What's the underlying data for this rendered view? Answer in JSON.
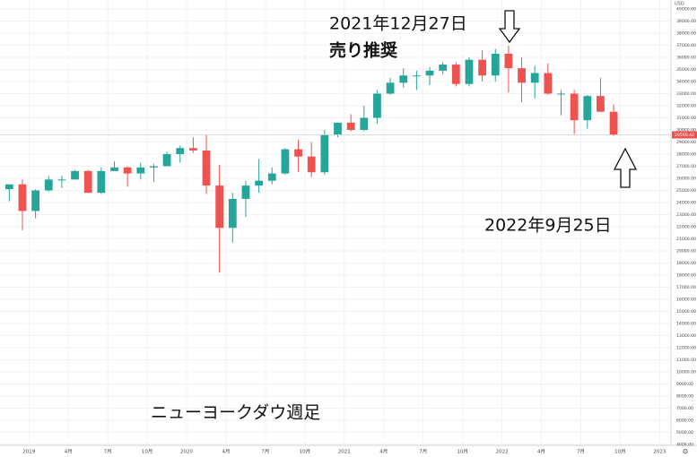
{
  "chart_data": {
    "type": "candlestick",
    "title": "ニューヨークダウ週足",
    "annotations": [
      "2021年12月27日",
      "売り推奨",
      "2022年9月25日"
    ],
    "currency": "USD",
    "up_color": "#26a69a",
    "down_color": "#ef5350",
    "last_price": 29590.42,
    "x": [
      "2018-11",
      "2018-12",
      "2019-01",
      "2019-02",
      "2019-03",
      "2019-04",
      "2019-05",
      "2019-06",
      "2019-07",
      "2019-08",
      "2019-09",
      "2019-10",
      "2019-11",
      "2019-12",
      "2020-01",
      "2020-02",
      "2020-03",
      "2020-04",
      "2020-05",
      "2020-06",
      "2020-07",
      "2020-08",
      "2020-09",
      "2020-10",
      "2020-11",
      "2020-12",
      "2021-01",
      "2021-02",
      "2021-03",
      "2021-04",
      "2021-05",
      "2021-06",
      "2021-07",
      "2021-08",
      "2021-09",
      "2021-10",
      "2021-11",
      "2021-12",
      "2022-01",
      "2022-02",
      "2022-03",
      "2022-04",
      "2022-05",
      "2022-06",
      "2022-07",
      "2022-08",
      "2022-09"
    ],
    "open": [
      25100,
      25500,
      23300,
      25000,
      25900,
      25900,
      26600,
      24800,
      26600,
      26900,
      26400,
      26900,
      27000,
      28000,
      28500,
      28300,
      25400,
      21900,
      24300,
      25400,
      25800,
      26400,
      28400,
      27800,
      26500,
      29600,
      30600,
      30000,
      31000,
      33000,
      33900,
      34500,
      34500,
      34900,
      35400,
      33800,
      35800,
      34500,
      36300,
      35100,
      33900,
      34700,
      33000,
      33000,
      30800,
      32800,
      31500
    ],
    "high": [
      25500,
      25900,
      25100,
      26200,
      26200,
      26700,
      26700,
      26900,
      27400,
      27000,
      27300,
      27200,
      28200,
      28700,
      29400,
      29600,
      27100,
      24800,
      25800,
      27600,
      26900,
      28500,
      29200,
      29000,
      30000,
      30600,
      31300,
      32000,
      33300,
      34300,
      35100,
      34900,
      35200,
      35600,
      35600,
      36000,
      36600,
      36700,
      36950,
      36000,
      35300,
      35500,
      33300,
      33300,
      32900,
      34300,
      32100
    ],
    "low": [
      24100,
      21700,
      22700,
      24900,
      25200,
      25900,
      24800,
      24700,
      26600,
      25300,
      25900,
      25700,
      27000,
      27300,
      28100,
      24700,
      18200,
      20700,
      22800,
      24800,
      25500,
      26300,
      26500,
      26100,
      26300,
      29400,
      29900,
      29900,
      30500,
      32900,
      33500,
      33300,
      33700,
      34600,
      33600,
      33600,
      34000,
      34000,
      33100,
      32300,
      32600,
      32900,
      31200,
      29650,
      30100,
      31500,
      29500
    ],
    "close": [
      25500,
      23300,
      25000,
      25900,
      25900,
      26600,
      24800,
      26600,
      26900,
      26400,
      26900,
      27000,
      28000,
      28500,
      28300,
      25400,
      21900,
      24300,
      25400,
      25800,
      26400,
      28400,
      27800,
      26500,
      29600,
      30600,
      30000,
      31000,
      33000,
      33900,
      34500,
      34500,
      34900,
      35400,
      33800,
      35800,
      34500,
      36300,
      35100,
      33900,
      34700,
      33000,
      33000,
      30800,
      32800,
      31500,
      29590
    ],
    "xlim": [
      "2018-11",
      "2023-02"
    ],
    "xticks": [
      {
        "value": "2019-01",
        "label": "2019"
      },
      {
        "value": "2019-04",
        "label": "4月"
      },
      {
        "value": "2019-07",
        "label": "7月"
      },
      {
        "value": "2019-10",
        "label": "10月"
      },
      {
        "value": "2020-01",
        "label": "2020"
      },
      {
        "value": "2020-04",
        "label": "4月"
      },
      {
        "value": "2020-07",
        "label": "7月"
      },
      {
        "value": "2020-10",
        "label": "10月"
      },
      {
        "value": "2021-01",
        "label": "2021"
      },
      {
        "value": "2021-04",
        "label": "4月"
      },
      {
        "value": "2021-07",
        "label": "7月"
      },
      {
        "value": "2021-10",
        "label": "10月"
      },
      {
        "value": "2022-01",
        "label": "2022"
      },
      {
        "value": "2022-04",
        "label": "4月"
      },
      {
        "value": "2022-07",
        "label": "7月"
      },
      {
        "value": "2022-10",
        "label": "10月"
      },
      {
        "value": "2023-01",
        "label": "2023"
      }
    ],
    "ylim": [
      3925,
      40740
    ],
    "yticks": [
      {
        "value": 4000,
        "label": "4000.00"
      },
      {
        "value": 5000,
        "label": "5000.00"
      },
      {
        "value": 6000,
        "label": "6000.00"
      },
      {
        "value": 7000,
        "label": "7000.00"
      },
      {
        "value": 8000,
        "label": "8000.00"
      },
      {
        "value": 9000,
        "label": "9000.00"
      },
      {
        "value": 10000,
        "label": "10000.00"
      },
      {
        "value": 11000,
        "label": "11000.00"
      },
      {
        "value": 12000,
        "label": "12000.00"
      },
      {
        "value": 13000,
        "label": "13000.00"
      },
      {
        "value": 14000,
        "label": "14000.00"
      },
      {
        "value": 15000,
        "label": "15000.00"
      },
      {
        "value": 16000,
        "label": "16000.00"
      },
      {
        "value": 17000,
        "label": "17000.00"
      },
      {
        "value": 18000,
        "label": "18000.00"
      },
      {
        "value": 19000,
        "label": "19000.00"
      },
      {
        "value": 20000,
        "label": "20000.00"
      },
      {
        "value": 21000,
        "label": "21000.00"
      },
      {
        "value": 22000,
        "label": "22000.00"
      },
      {
        "value": 23000,
        "label": "23000.00"
      },
      {
        "value": 24000,
        "label": "24000.00"
      },
      {
        "value": 25000,
        "label": "25000.00"
      },
      {
        "value": 26000,
        "label": "26000.00"
      },
      {
        "value": 27000,
        "label": "27000.00"
      },
      {
        "value": 28000,
        "label": "28000.00"
      },
      {
        "value": 29000,
        "label": "29000.00"
      },
      {
        "value": 30000,
        "label": "30000.00"
      },
      {
        "value": 31000,
        "label": "31000.00"
      },
      {
        "value": 32000,
        "label": "32000.00"
      },
      {
        "value": 33000,
        "label": "33000.00"
      },
      {
        "value": 34000,
        "label": "34000.00"
      },
      {
        "value": 35000,
        "label": "35000.00"
      },
      {
        "value": 36000,
        "label": "36000.00"
      },
      {
        "value": 37000,
        "label": "37000.00"
      },
      {
        "value": 38000,
        "label": "38000.00"
      },
      {
        "value": 39000,
        "label": "39000.00"
      },
      {
        "value": 40000,
        "label": "40000.00"
      }
    ],
    "grid": true
  }
}
